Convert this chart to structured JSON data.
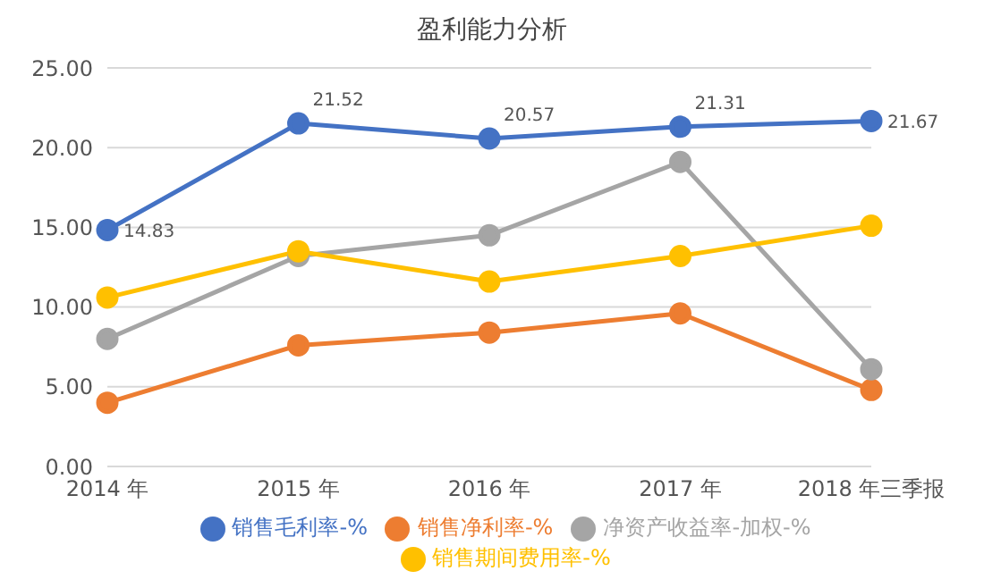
{
  "chart_data": {
    "type": "line",
    "title": "盈利能力分析",
    "categories": [
      "2014 年",
      "2015 年",
      "2016 年",
      "2017 年",
      "2018 年三季报"
    ],
    "series": [
      {
        "name": "销售毛利率-%",
        "color": "#4472c4",
        "values": [
          14.83,
          21.52,
          20.57,
          21.31,
          21.67
        ],
        "value_labels": [
          "14.83",
          "21.52",
          "20.57",
          "21.31",
          "21.67"
        ]
      },
      {
        "name": "销售净利率-%",
        "color": "#ed7d31",
        "values": [
          4.0,
          7.6,
          8.4,
          9.6,
          4.8
        ]
      },
      {
        "name": "净资产收益率-加权-%",
        "color": "#a5a5a5",
        "values": [
          8.0,
          13.2,
          14.5,
          19.1,
          6.1
        ]
      },
      {
        "name": "销售期间费用率-%",
        "color": "#ffc000",
        "values": [
          10.6,
          13.5,
          11.6,
          13.2,
          15.1
        ]
      }
    ],
    "ylim": [
      0,
      25
    ],
    "yticks": [
      {
        "value": 0,
        "label": "0.00"
      },
      {
        "value": 5,
        "label": "5.00"
      },
      {
        "value": 10,
        "label": "10.00"
      },
      {
        "value": 15,
        "label": "15.00"
      },
      {
        "value": 20,
        "label": "20.00"
      },
      {
        "value": 25,
        "label": "25.00"
      }
    ],
    "grid": "y",
    "legend": "bottom",
    "marker": "circle",
    "line_style": "solid"
  }
}
